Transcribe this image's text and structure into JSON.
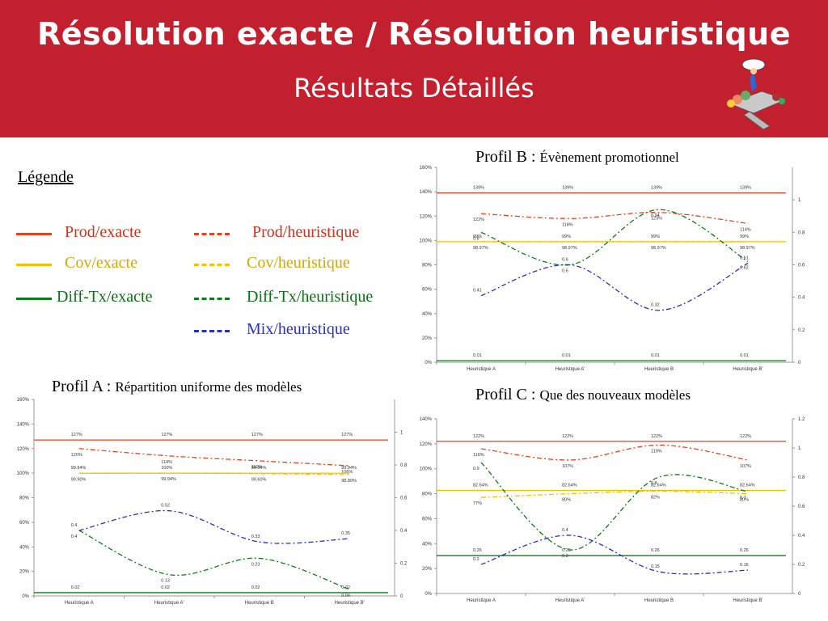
{
  "header": {
    "title": "Résolution exacte / Résolution heuristique",
    "subtitle": "Résultats Détaillés"
  },
  "legend": {
    "title": "Légende",
    "items": [
      {
        "label": "Prod/exacte",
        "color": "#e8411c",
        "style": "solid"
      },
      {
        "label": "Prod/heuristique",
        "color": "#e8411c",
        "style": "dashdot"
      },
      {
        "label": "Cov/exacte",
        "color": "#f2c200",
        "style": "solid"
      },
      {
        "label": "Cov/heuristique",
        "color": "#f2c200",
        "style": "dashdot"
      },
      {
        "label": "Diff-Tx/exacte",
        "color": "#0f7a18",
        "style": "solid"
      },
      {
        "label": "Diff-Tx/heuristique",
        "color": "#0f7a18",
        "style": "dashdot"
      },
      {
        "label": "Mix/heuristique",
        "color": "#2a2fc4",
        "style": "dashdot"
      }
    ]
  },
  "chart_titles": {
    "a_main": "Profil A : ",
    "a_small": "Répartition uniforme des modèles",
    "b_main": "Profil B : ",
    "b_small": "Évènement promotionnel",
    "c_main": "Profil C : ",
    "c_small": "Que des nouveaux modèles"
  },
  "chart_data": [
    {
      "id": "A",
      "type": "line",
      "categories": [
        "Heuristique A",
        "Heuristique A'",
        "Heuristique B",
        "Heuristique B'"
      ],
      "y_ticks": [
        "0%",
        "20%",
        "40%",
        "60%",
        "80%",
        "100%",
        "120%",
        "140%",
        "160%"
      ],
      "ylim": [
        0,
        1.6
      ],
      "y2_ticks": [
        "0",
        "0.2",
        "0.4",
        "0.6",
        "0.8",
        "1"
      ],
      "y2lim": [
        0,
        1.2
      ],
      "series": [
        {
          "axis": "left",
          "values": [
            1.27,
            1.27,
            1.27,
            1.27
          ],
          "labels": [
            "127%",
            "127%",
            "127%",
            "127%"
          ],
          "color": "#e8411c",
          "style": "solid"
        },
        {
          "axis": "left",
          "values": [
            1.2,
            1.14,
            1.1,
            1.06
          ],
          "labels": [
            "120%",
            "114%",
            "110%",
            "106%"
          ],
          "color": "#e8411c",
          "style": "dashdot"
        },
        {
          "axis": "left",
          "values": [
            0.9994,
            1.0,
            0.9994,
            0.9994
          ],
          "labels": [
            "99.94%",
            "100%",
            "99.94%",
            "99.94%"
          ],
          "color": "#f2c200",
          "style": "solid"
        },
        {
          "axis": "left",
          "values": [
            0.999,
            0.9994,
            0.996,
            0.988
          ],
          "labels": [
            "99.90%",
            "99.94%",
            "99.60%",
            "98.80%"
          ],
          "color": "#f2c200",
          "style": "dashdot"
        },
        {
          "axis": "right",
          "values": [
            0.02,
            0.02,
            0.02,
            0.02
          ],
          "labels": [
            "0.02",
            "0.02",
            "0.02",
            "0.02"
          ],
          "color": "#0f7a18",
          "style": "solid"
        },
        {
          "axis": "right",
          "values": [
            0.4,
            0.13,
            0.23,
            0.04
          ],
          "labels": [
            "0.4",
            "0.13",
            "0.23",
            "0.04"
          ],
          "color": "#0f7a18",
          "style": "dashdot"
        },
        {
          "axis": "right",
          "values": [
            0.4,
            0.52,
            0.33,
            0.35
          ],
          "labels": [
            "0.4",
            "0.52",
            "0.33",
            "0.35"
          ],
          "color": "#2a2fc4",
          "style": "dashdot"
        }
      ]
    },
    {
      "id": "B",
      "type": "line",
      "categories": [
        "Heuristique A",
        "Heuristique A'",
        "Heuristique B",
        "Heuristique B'"
      ],
      "y_ticks": [
        "0%",
        "20%",
        "40%",
        "60%",
        "80%",
        "100%",
        "120%",
        "140%",
        "160%"
      ],
      "ylim": [
        0,
        1.6
      ],
      "y2_ticks": [
        "0",
        "0.2",
        "0.4",
        "0.6",
        "0.8",
        "1"
      ],
      "y2lim": [
        0,
        1.2
      ],
      "series": [
        {
          "axis": "left",
          "values": [
            1.39,
            1.39,
            1.39,
            1.39
          ],
          "labels": [
            "139%",
            "139%",
            "139%",
            "139%"
          ],
          "color": "#e8411c",
          "style": "solid"
        },
        {
          "axis": "left",
          "values": [
            1.22,
            1.18,
            1.23,
            1.14
          ],
          "labels": [
            "122%",
            "118%",
            "123%",
            "114%"
          ],
          "color": "#e8411c",
          "style": "dashdot"
        },
        {
          "axis": "left",
          "values": [
            0.99,
            0.99,
            0.99,
            0.99
          ],
          "labels": [
            "99%",
            "99%",
            "99%",
            "99%"
          ],
          "color": "#f2c200",
          "style": "solid"
        },
        {
          "axis": "left",
          "values": [
            0.9897,
            0.9897,
            0.9897,
            0.9897
          ],
          "labels": [
            "98.97%",
            "98.97%",
            "98.97%",
            "98.97%"
          ],
          "color": "#f2c200",
          "style": "dashdot"
        },
        {
          "axis": "right",
          "values": [
            0.01,
            0.01,
            0.01,
            0.01
          ],
          "labels": [
            "0.01",
            "0.01",
            "0.01",
            "0.01"
          ],
          "color": "#0f7a18",
          "style": "solid"
        },
        {
          "axis": "right",
          "values": [
            0.8,
            0.6,
            0.94,
            0.62
          ],
          "labels": [
            "0.8",
            "0.6",
            "0.94",
            "0.62"
          ],
          "color": "#0f7a18",
          "style": "dashdot"
        },
        {
          "axis": "right",
          "values": [
            0.41,
            0.6,
            0.32,
            0.61
          ],
          "labels": [
            "0.41",
            "0.6",
            "0.32",
            "0.61"
          ],
          "color": "#2a2fc4",
          "style": "dashdot"
        }
      ]
    },
    {
      "id": "C",
      "type": "line",
      "categories": [
        "Heuristique A",
        "Heuristique A'",
        "Heuristique B",
        "Heuristique B'"
      ],
      "y_ticks": [
        "0%",
        "20%",
        "40%",
        "60%",
        "80%",
        "100%",
        "120%",
        "140%"
      ],
      "ylim": [
        0,
        1.4
      ],
      "y2_ticks": [
        "0",
        "0.2",
        "0.4",
        "0.6",
        "0.8",
        "1",
        "1.2"
      ],
      "y2lim": [
        0,
        1.2
      ],
      "series": [
        {
          "axis": "left",
          "values": [
            1.22,
            1.22,
            1.22,
            1.22
          ],
          "labels": [
            "122%",
            "122%",
            "122%",
            "122%"
          ],
          "color": "#e8411c",
          "style": "solid"
        },
        {
          "axis": "left",
          "values": [
            1.16,
            1.07,
            1.19,
            1.07
          ],
          "labels": [
            "116%",
            "107%",
            "119%",
            "107%"
          ],
          "color": "#e8411c",
          "style": "dashdot"
        },
        {
          "axis": "left",
          "values": [
            0.8264,
            0.8264,
            0.8264,
            0.8264
          ],
          "labels": [
            "82.64%",
            "82.64%",
            "82.64%",
            "82.64%"
          ],
          "color": "#f2c200",
          "style": "solid"
        },
        {
          "axis": "left",
          "values": [
            0.77,
            0.8,
            0.82,
            0.8
          ],
          "labels": [
            "77%",
            "80%",
            "82%",
            "80%"
          ],
          "color": "#f2c200",
          "style": "dashdot"
        },
        {
          "axis": "right",
          "values": [
            0.26,
            0.26,
            0.26,
            0.26
          ],
          "labels": [
            "0.26",
            "0.26",
            "0.26",
            "0.26"
          ],
          "color": "#0f7a18",
          "style": "solid"
        },
        {
          "axis": "right",
          "values": [
            0.9,
            0.3,
            0.8,
            0.7
          ],
          "labels": [
            "0.9",
            "0.3",
            "0.8",
            "0.7"
          ],
          "color": "#0f7a18",
          "style": "dashdot"
        },
        {
          "axis": "right",
          "values": [
            0.2,
            0.4,
            0.15,
            0.16
          ],
          "labels": [
            "0.2",
            "0.4",
            "0.15",
            "0.16"
          ],
          "color": "#2a2fc4",
          "style": "dashdot"
        }
      ]
    }
  ]
}
